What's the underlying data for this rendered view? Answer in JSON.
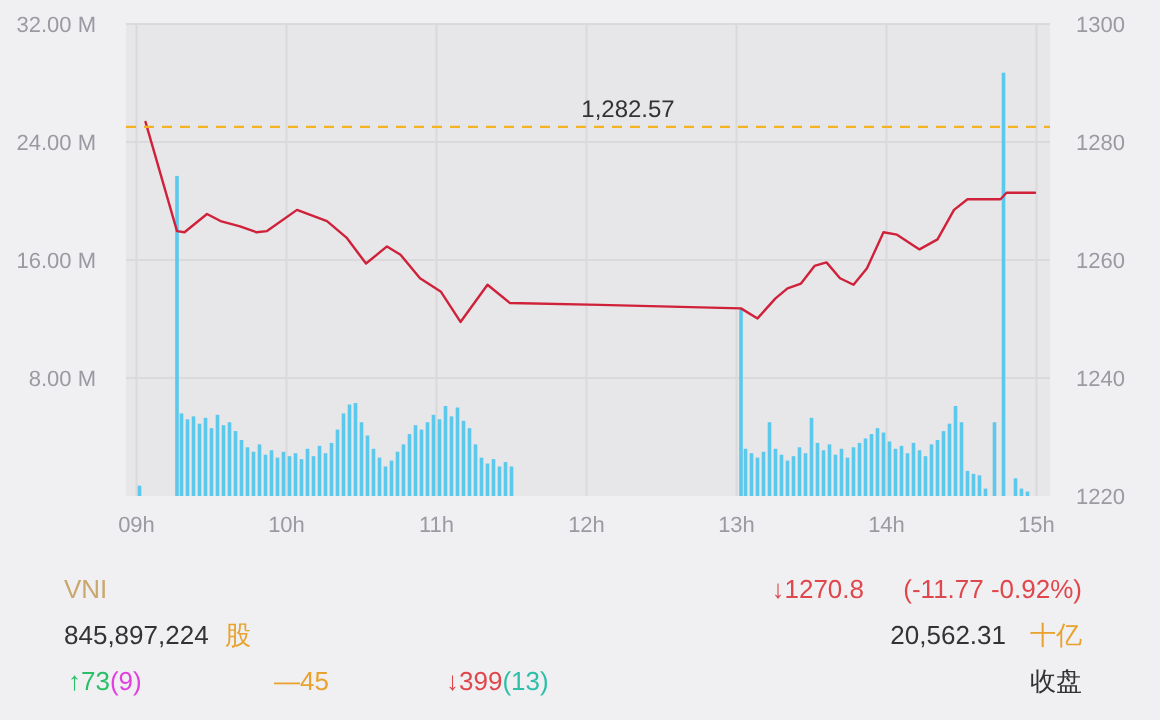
{
  "chart_data": {
    "type": "line",
    "xlim": [
      8.93,
      15.09
    ],
    "xticks": [
      {
        "value": 9,
        "label": "09h"
      },
      {
        "value": 10,
        "label": "10h"
      },
      {
        "value": 11,
        "label": "11h"
      },
      {
        "value": 12,
        "label": "12h"
      },
      {
        "value": 13,
        "label": "13h"
      },
      {
        "value": 14,
        "label": "14h"
      },
      {
        "value": 15,
        "label": "15h"
      }
    ],
    "ylim": [
      0,
      32
    ],
    "yticks": [
      {
        "value": 8,
        "label": "8.00 M"
      },
      {
        "value": 16,
        "label": "16.00 M"
      },
      {
        "value": 24,
        "label": "24.00 M"
      },
      {
        "value": 32,
        "label": "32.00 M"
      }
    ],
    "y2lim": [
      1220,
      1300
    ],
    "y2ticks": [
      1220,
      1240,
      1260,
      1280,
      1300
    ],
    "grid": true,
    "series": [
      {
        "type": "bar",
        "color": "#5bc8ec",
        "x": [
          9.02,
          9.27,
          9.3,
          9.34,
          9.38,
          9.42,
          9.46,
          9.5,
          9.54,
          9.58,
          9.62,
          9.66,
          9.7,
          9.74,
          9.78,
          9.82,
          9.86,
          9.9,
          9.94,
          9.98,
          10.02,
          10.06,
          10.1,
          10.14,
          10.18,
          10.22,
          10.26,
          10.3,
          10.34,
          10.38,
          10.42,
          10.46,
          10.5,
          10.54,
          10.58,
          10.62,
          10.66,
          10.7,
          10.74,
          10.78,
          10.82,
          10.86,
          10.9,
          10.94,
          10.98,
          11.02,
          11.06,
          11.1,
          11.14,
          11.18,
          11.22,
          11.26,
          11.3,
          11.34,
          11.38,
          11.42,
          11.46,
          11.5,
          13.03,
          13.06,
          13.1,
          13.14,
          13.18,
          13.22,
          13.26,
          13.3,
          13.34,
          13.38,
          13.42,
          13.46,
          13.5,
          13.54,
          13.58,
          13.62,
          13.66,
          13.7,
          13.74,
          13.78,
          13.82,
          13.86,
          13.9,
          13.94,
          13.98,
          14.02,
          14.06,
          14.1,
          14.14,
          14.18,
          14.22,
          14.26,
          14.3,
          14.34,
          14.38,
          14.42,
          14.46,
          14.5,
          14.54,
          14.58,
          14.62,
          14.66,
          14.72,
          14.78,
          14.86,
          14.9,
          14.94
        ],
        "values": [
          0.7,
          21.7,
          5.6,
          5.2,
          5.4,
          4.9,
          5.3,
          4.6,
          5.5,
          4.8,
          5.0,
          4.4,
          3.8,
          3.3,
          3.0,
          3.5,
          2.8,
          3.1,
          2.6,
          3.0,
          2.7,
          2.9,
          2.5,
          3.2,
          2.7,
          3.4,
          2.9,
          3.6,
          4.5,
          5.6,
          6.2,
          6.3,
          5.0,
          4.1,
          3.2,
          2.6,
          2.0,
          2.4,
          3.0,
          3.5,
          4.2,
          4.8,
          4.5,
          5.0,
          5.5,
          5.2,
          6.1,
          5.4,
          6.0,
          5.1,
          4.6,
          3.5,
          2.6,
          2.2,
          2.5,
          2.0,
          2.3,
          2.0,
          12.7,
          3.2,
          2.9,
          2.6,
          3.0,
          5.0,
          3.2,
          2.8,
          2.4,
          2.7,
          3.3,
          2.9,
          5.3,
          3.6,
          3.1,
          3.5,
          2.8,
          3.2,
          2.6,
          3.3,
          3.6,
          3.9,
          4.2,
          4.6,
          4.3,
          3.7,
          3.2,
          3.4,
          2.9,
          3.6,
          3.1,
          2.7,
          3.5,
          3.8,
          4.4,
          4.9,
          6.1,
          5.0,
          1.7,
          1.5,
          1.4,
          0.5,
          5.0,
          28.7,
          1.2,
          0.5,
          0.3
        ]
      },
      {
        "axis": "y2",
        "color": "#d0213a",
        "x": [
          9.06,
          9.27,
          9.32,
          9.47,
          9.56,
          9.69,
          9.8,
          9.87,
          10.07,
          10.27,
          10.4,
          10.53,
          10.67,
          10.76,
          10.89,
          11.03,
          11.16,
          11.34,
          11.49,
          12.09,
          13.03,
          13.14,
          13.26,
          13.34,
          13.43,
          13.52,
          13.6,
          13.69,
          13.78,
          13.87,
          13.98,
          14.07,
          14.22,
          14.34,
          14.45,
          14.54,
          14.76,
          14.8,
          14.99
        ],
        "values": [
          1283.4,
          1264.9,
          1264.7,
          1267.8,
          1266.6,
          1265.7,
          1264.7,
          1264.9,
          1268.5,
          1266.6,
          1263.8,
          1259.4,
          1262.3,
          1260.9,
          1256.9,
          1254.6,
          1249.5,
          1255.8,
          1252.7,
          1252.4,
          1251.8,
          1250.1,
          1253.5,
          1255.2,
          1256.0,
          1259.0,
          1259.6,
          1256.9,
          1255.8,
          1258.6,
          1264.7,
          1264.3,
          1261.8,
          1263.5,
          1268.5,
          1270.3,
          1270.3,
          1271.4,
          1271.4
        ]
      }
    ],
    "ref_lines": [
      {
        "axis": "y2",
        "value": 1282.57,
        "label": "1,282.57",
        "color": "#f5b324",
        "line_style": "dashed"
      }
    ],
    "annotations": [
      "VNI",
      "↓1270.8",
      "(-11.77  -0.92%)",
      "845,897,224",
      "股",
      "20,562.31",
      "十亿",
      "↑73",
      "(9)",
      "—45",
      "↓399",
      "(13)",
      "收盘"
    ]
  }
}
